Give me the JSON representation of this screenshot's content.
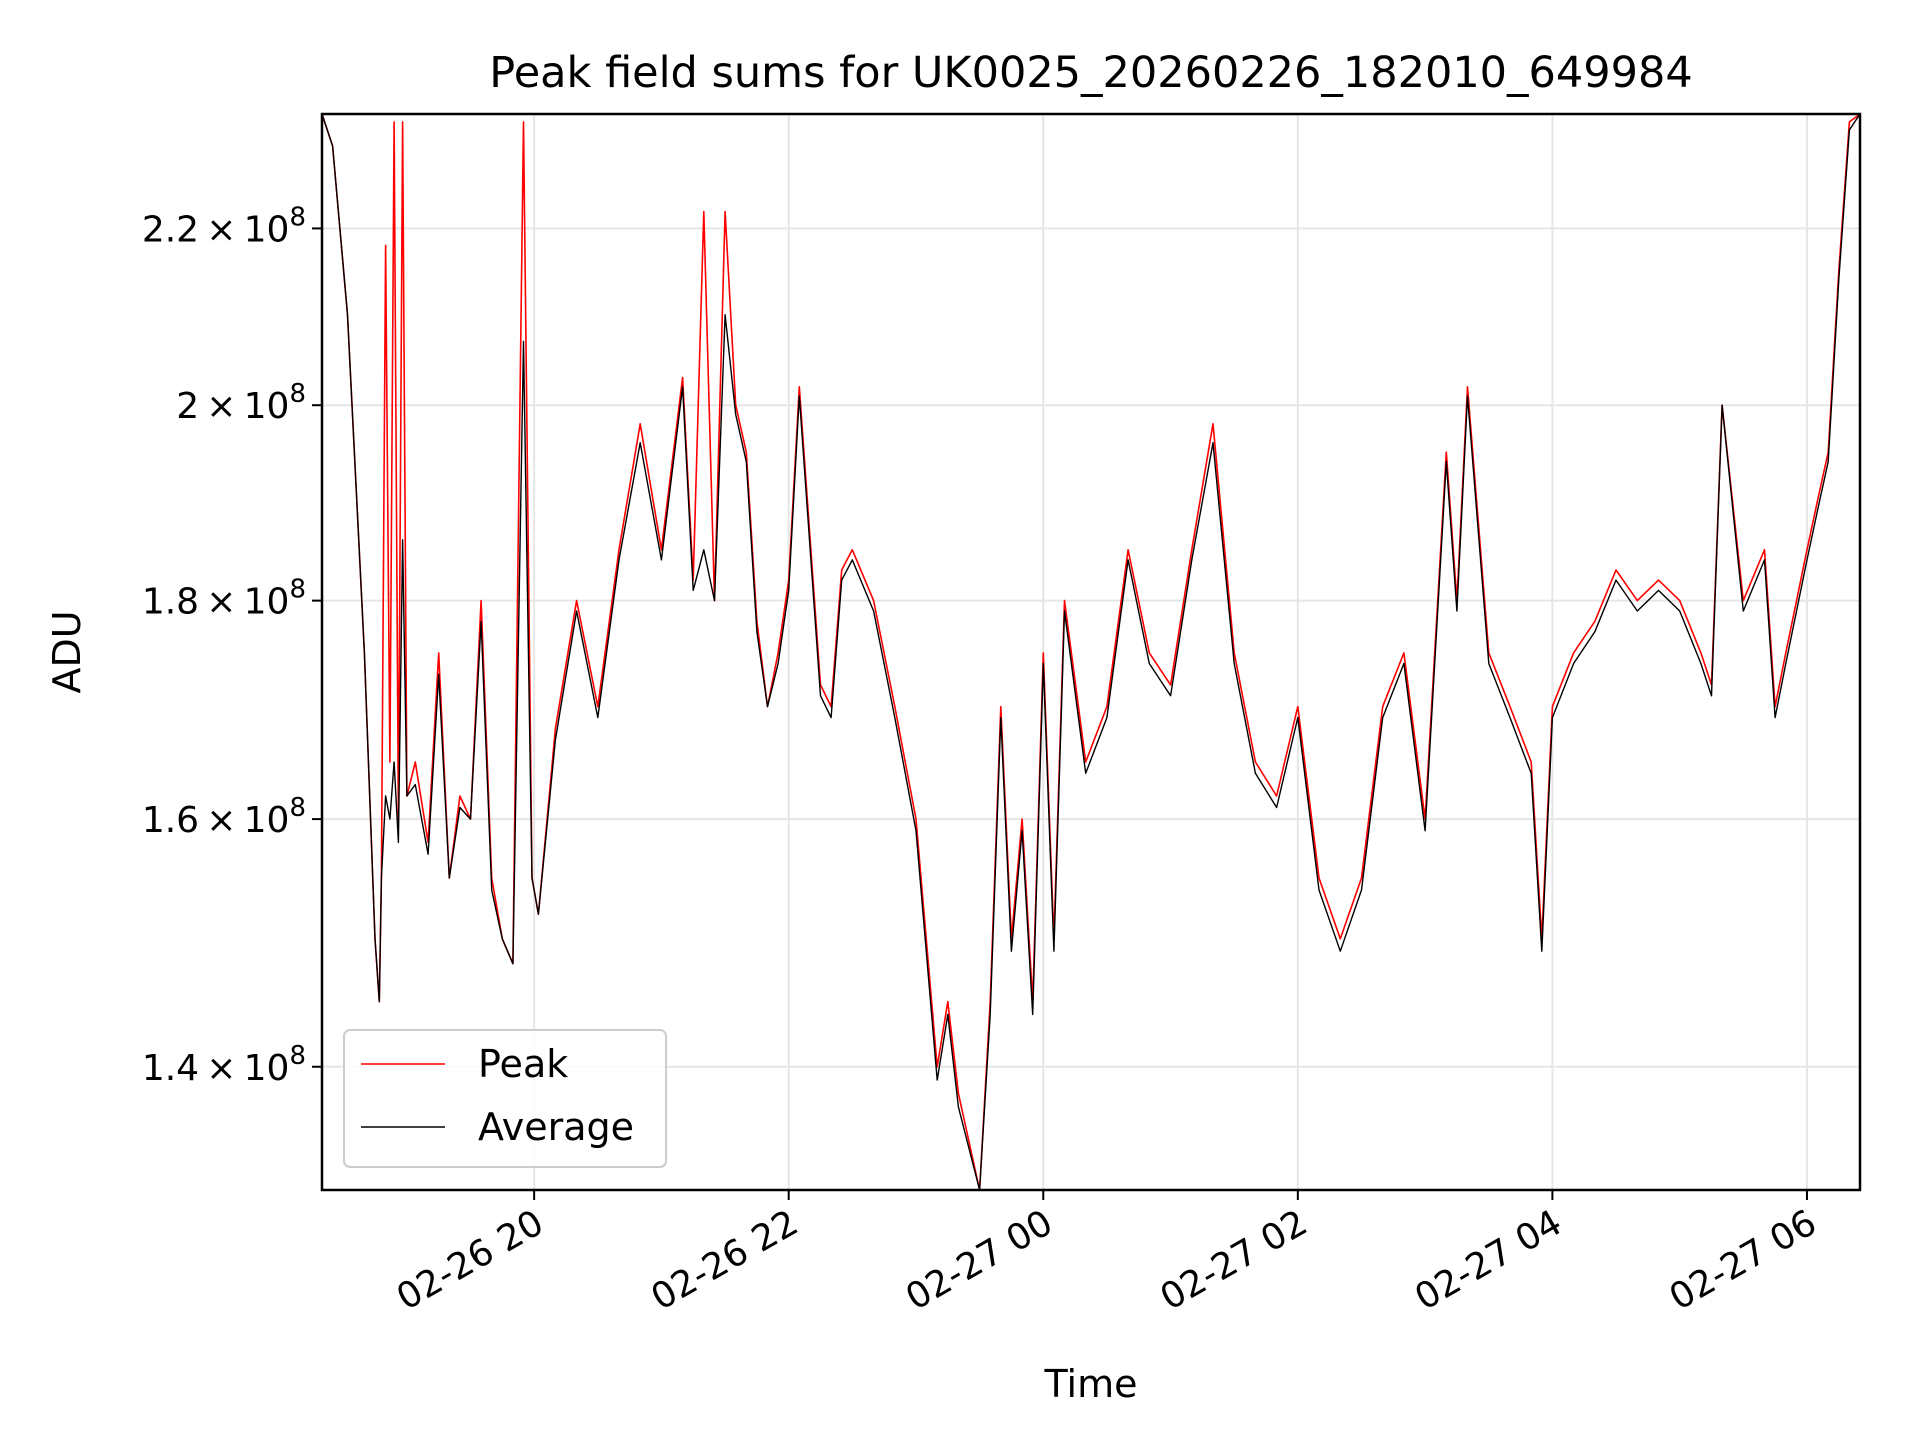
{
  "chart_data": {
    "type": "line",
    "title": "Peak field sums for UK0025_20260226_182010_649984",
    "xlabel": "Time",
    "ylabel": "ADU",
    "y_scale": "log",
    "xlim": [
      "2026-02-26 18:20",
      "2026-02-27 06:25"
    ],
    "ylim": [
      131000000.0,
      234000000.0
    ],
    "grid": true,
    "legend_position": "lower-left",
    "x_ticks": [
      {
        "value": "2026-02-26 20:00",
        "label": "02-26 20"
      },
      {
        "value": "2026-02-26 22:00",
        "label": "02-26 22"
      },
      {
        "value": "2026-02-27 00:00",
        "label": "02-27 00"
      },
      {
        "value": "2026-02-27 02:00",
        "label": "02-27 02"
      },
      {
        "value": "2026-02-27 04:00",
        "label": "02-27 04"
      },
      {
        "value": "2026-02-27 06:00",
        "label": "02-27 06"
      }
    ],
    "y_ticks": [
      {
        "value": 140000000.0,
        "mantissa": "1.4",
        "exp": "8"
      },
      {
        "value": 160000000.0,
        "mantissa": "1.6",
        "exp": "8"
      },
      {
        "value": 180000000.0,
        "mantissa": "1.8",
        "exp": "8"
      },
      {
        "value": 200000000.0,
        "mantissa": "2",
        "exp": "8"
      },
      {
        "value": 220000000.0,
        "mantissa": "2.2",
        "exp": "8"
      }
    ],
    "series": [
      {
        "name": "Peak",
        "color": "#ff0000",
        "x": [
          "2026-02-26 18:20",
          "2026-02-26 18:25",
          "2026-02-26 18:32",
          "2026-02-26 18:40",
          "2026-02-26 18:45",
          "2026-02-26 18:47",
          "2026-02-26 18:48",
          "2026-02-26 18:50",
          "2026-02-26 18:52",
          "2026-02-26 18:54",
          "2026-02-26 18:56",
          "2026-02-26 18:58",
          "2026-02-26 19:00",
          "2026-02-26 19:04",
          "2026-02-26 19:10",
          "2026-02-26 19:15",
          "2026-02-26 19:20",
          "2026-02-26 19:25",
          "2026-02-26 19:30",
          "2026-02-26 19:35",
          "2026-02-26 19:40",
          "2026-02-26 19:45",
          "2026-02-26 19:50",
          "2026-02-26 19:55",
          "2026-02-26 19:59",
          "2026-02-26 20:02",
          "2026-02-26 20:10",
          "2026-02-26 20:20",
          "2026-02-26 20:30",
          "2026-02-26 20:40",
          "2026-02-26 20:50",
          "2026-02-26 21:00",
          "2026-02-26 21:10",
          "2026-02-26 21:15",
          "2026-02-26 21:20",
          "2026-02-26 21:25",
          "2026-02-26 21:30",
          "2026-02-26 21:35",
          "2026-02-26 21:40",
          "2026-02-26 21:45",
          "2026-02-26 21:50",
          "2026-02-26 21:55",
          "2026-02-26 22:00",
          "2026-02-26 22:05",
          "2026-02-26 22:15",
          "2026-02-26 22:20",
          "2026-02-26 22:25",
          "2026-02-26 22:30",
          "2026-02-26 22:40",
          "2026-02-26 22:50",
          "2026-02-26 23:00",
          "2026-02-26 23:10",
          "2026-02-26 23:15",
          "2026-02-26 23:20",
          "2026-02-26 23:30",
          "2026-02-26 23:35",
          "2026-02-26 23:40",
          "2026-02-26 23:45",
          "2026-02-26 23:50",
          "2026-02-26 23:55",
          "2026-02-27 00:00",
          "2026-02-27 00:05",
          "2026-02-27 00:10",
          "2026-02-27 00:20",
          "2026-02-27 00:30",
          "2026-02-27 00:40",
          "2026-02-27 00:50",
          "2026-02-27 01:00",
          "2026-02-27 01:10",
          "2026-02-27 01:20",
          "2026-02-27 01:30",
          "2026-02-27 01:40",
          "2026-02-27 01:50",
          "2026-02-27 02:00",
          "2026-02-27 02:10",
          "2026-02-27 02:20",
          "2026-02-27 02:30",
          "2026-02-27 02:40",
          "2026-02-27 02:50",
          "2026-02-27 03:00",
          "2026-02-27 03:10",
          "2026-02-27 03:15",
          "2026-02-27 03:20",
          "2026-02-27 03:30",
          "2026-02-27 03:40",
          "2026-02-27 03:50",
          "2026-02-27 03:55",
          "2026-02-27 04:00",
          "2026-02-27 04:10",
          "2026-02-27 04:20",
          "2026-02-27 04:30",
          "2026-02-27 04:40",
          "2026-02-27 04:50",
          "2026-02-27 05:00",
          "2026-02-27 05:10",
          "2026-02-27 05:15",
          "2026-02-27 05:20",
          "2026-02-27 05:30",
          "2026-02-27 05:40",
          "2026-02-27 05:45",
          "2026-02-27 05:50",
          "2026-02-27 06:00",
          "2026-02-27 06:05",
          "2026-02-27 06:10",
          "2026-02-27 06:15",
          "2026-02-27 06:20",
          "2026-02-27 06:25"
        ],
        "y": [
          234000000.0,
          230000000.0,
          210000000.0,
          175000000.0,
          150000000.0,
          145000000.0,
          155000000.0,
          218000000.0,
          165000000.0,
          233000000.0,
          160000000.0,
          233000000.0,
          162000000.0,
          165000000.0,
          158000000.0,
          175000000.0,
          155000000.0,
          162000000.0,
          160000000.0,
          180000000.0,
          155000000.0,
          150000000.0,
          148000000.0,
          233000000.0,
          155000000.0,
          152000000.0,
          168000000.0,
          180000000.0,
          170000000.0,
          185000000.0,
          198000000.0,
          185000000.0,
          203000000.0,
          182000000.0,
          222000000.0,
          180000000.0,
          222000000.0,
          200000000.0,
          195000000.0,
          178000000.0,
          170000000.0,
          175000000.0,
          182000000.0,
          202000000.0,
          172000000.0,
          170000000.0,
          183000000.0,
          185000000.0,
          180000000.0,
          170000000.0,
          160000000.0,
          140000000.0,
          145000000.0,
          138000000.0,
          131000000.0,
          145000000.0,
          170000000.0,
          150000000.0,
          160000000.0,
          145000000.0,
          175000000.0,
          150000000.0,
          180000000.0,
          165000000.0,
          170000000.0,
          185000000.0,
          175000000.0,
          172000000.0,
          185000000.0,
          198000000.0,
          175000000.0,
          165000000.0,
          162000000.0,
          170000000.0,
          155000000.0,
          150000000.0,
          155000000.0,
          170000000.0,
          175000000.0,
          160000000.0,
          195000000.0,
          180000000.0,
          202000000.0,
          175000000.0,
          170000000.0,
          165000000.0,
          150000000.0,
          170000000.0,
          175000000.0,
          178000000.0,
          183000000.0,
          180000000.0,
          182000000.0,
          180000000.0,
          175000000.0,
          172000000.0,
          200000000.0,
          180000000.0,
          185000000.0,
          170000000.0,
          175000000.0,
          185000000.0,
          190000000.0,
          195000000.0,
          215000000.0,
          233000000.0,
          234000000.0
        ]
      },
      {
        "name": "Average",
        "color": "#000000",
        "x": [
          "2026-02-26 18:20",
          "2026-02-26 18:25",
          "2026-02-26 18:32",
          "2026-02-26 18:40",
          "2026-02-26 18:45",
          "2026-02-26 18:47",
          "2026-02-26 18:48",
          "2026-02-26 18:50",
          "2026-02-26 18:52",
          "2026-02-26 18:54",
          "2026-02-26 18:56",
          "2026-02-26 18:58",
          "2026-02-26 19:00",
          "2026-02-26 19:04",
          "2026-02-26 19:10",
          "2026-02-26 19:15",
          "2026-02-26 19:20",
          "2026-02-26 19:25",
          "2026-02-26 19:30",
          "2026-02-26 19:35",
          "2026-02-26 19:40",
          "2026-02-26 19:45",
          "2026-02-26 19:50",
          "2026-02-26 19:55",
          "2026-02-26 19:59",
          "2026-02-26 20:02",
          "2026-02-26 20:10",
          "2026-02-26 20:20",
          "2026-02-26 20:30",
          "2026-02-26 20:40",
          "2026-02-26 20:50",
          "2026-02-26 21:00",
          "2026-02-26 21:10",
          "2026-02-26 21:15",
          "2026-02-26 21:20",
          "2026-02-26 21:25",
          "2026-02-26 21:30",
          "2026-02-26 21:35",
          "2026-02-26 21:40",
          "2026-02-26 21:45",
          "2026-02-26 21:50",
          "2026-02-26 21:55",
          "2026-02-26 22:00",
          "2026-02-26 22:05",
          "2026-02-26 22:15",
          "2026-02-26 22:20",
          "2026-02-26 22:25",
          "2026-02-26 22:30",
          "2026-02-26 22:40",
          "2026-02-26 22:50",
          "2026-02-26 23:00",
          "2026-02-26 23:10",
          "2026-02-26 23:15",
          "2026-02-26 23:20",
          "2026-02-26 23:30",
          "2026-02-26 23:35",
          "2026-02-26 23:40",
          "2026-02-26 23:45",
          "2026-02-26 23:50",
          "2026-02-26 23:55",
          "2026-02-27 00:00",
          "2026-02-27 00:05",
          "2026-02-27 00:10",
          "2026-02-27 00:20",
          "2026-02-27 00:30",
          "2026-02-27 00:40",
          "2026-02-27 00:50",
          "2026-02-27 01:00",
          "2026-02-27 01:10",
          "2026-02-27 01:20",
          "2026-02-27 01:30",
          "2026-02-27 01:40",
          "2026-02-27 01:50",
          "2026-02-27 02:00",
          "2026-02-27 02:10",
          "2026-02-27 02:20",
          "2026-02-27 02:30",
          "2026-02-27 02:40",
          "2026-02-27 02:50",
          "2026-02-27 03:00",
          "2026-02-27 03:10",
          "2026-02-27 03:15",
          "2026-02-27 03:20",
          "2026-02-27 03:30",
          "2026-02-27 03:40",
          "2026-02-27 03:50",
          "2026-02-27 03:55",
          "2026-02-27 04:00",
          "2026-02-27 04:10",
          "2026-02-27 04:20",
          "2026-02-27 04:30",
          "2026-02-27 04:40",
          "2026-02-27 04:50",
          "2026-02-27 05:00",
          "2026-02-27 05:10",
          "2026-02-27 05:15",
          "2026-02-27 05:20",
          "2026-02-27 05:30",
          "2026-02-27 05:40",
          "2026-02-27 05:45",
          "2026-02-27 05:50",
          "2026-02-27 06:00",
          "2026-02-27 06:05",
          "2026-02-27 06:10",
          "2026-02-27 06:15",
          "2026-02-27 06:20",
          "2026-02-27 06:25"
        ],
        "y": [
          234000000.0,
          230000000.0,
          210000000.0,
          175000000.0,
          150000000.0,
          145000000.0,
          155000000.0,
          162000000.0,
          160000000.0,
          165000000.0,
          158000000.0,
          186000000.0,
          162000000.0,
          163000000.0,
          157000000.0,
          173000000.0,
          155000000.0,
          161000000.0,
          160000000.0,
          178000000.0,
          154000000.0,
          150000000.0,
          148000000.0,
          207000000.0,
          155000000.0,
          152000000.0,
          167000000.0,
          179000000.0,
          169000000.0,
          184000000.0,
          196000000.0,
          184000000.0,
          202000000.0,
          181000000.0,
          185000000.0,
          180000000.0,
          210000000.0,
          199000000.0,
          194000000.0,
          177000000.0,
          170000000.0,
          174000000.0,
          181000000.0,
          201000000.0,
          171000000.0,
          169000000.0,
          182000000.0,
          184000000.0,
          179000000.0,
          169000000.0,
          159000000.0,
          139000000.0,
          144000000.0,
          137000000.0,
          130000000.0,
          144000000.0,
          169000000.0,
          149000000.0,
          159000000.0,
          144000000.0,
          174000000.0,
          149000000.0,
          179000000.0,
          164000000.0,
          169000000.0,
          184000000.0,
          174000000.0,
          171000000.0,
          184000000.0,
          196000000.0,
          174000000.0,
          164000000.0,
          161000000.0,
          169000000.0,
          154000000.0,
          149000000.0,
          154000000.0,
          169000000.0,
          174000000.0,
          159000000.0,
          194000000.0,
          179000000.0,
          201000000.0,
          174000000.0,
          169000000.0,
          164000000.0,
          149000000.0,
          169000000.0,
          174000000.0,
          177000000.0,
          182000000.0,
          179000000.0,
          181000000.0,
          179000000.0,
          174000000.0,
          171000000.0,
          200000000.0,
          179000000.0,
          184000000.0,
          169000000.0,
          174000000.0,
          184000000.0,
          189000000.0,
          194000000.0,
          214000000.0,
          232000000.0,
          234000000.0
        ]
      }
    ]
  }
}
